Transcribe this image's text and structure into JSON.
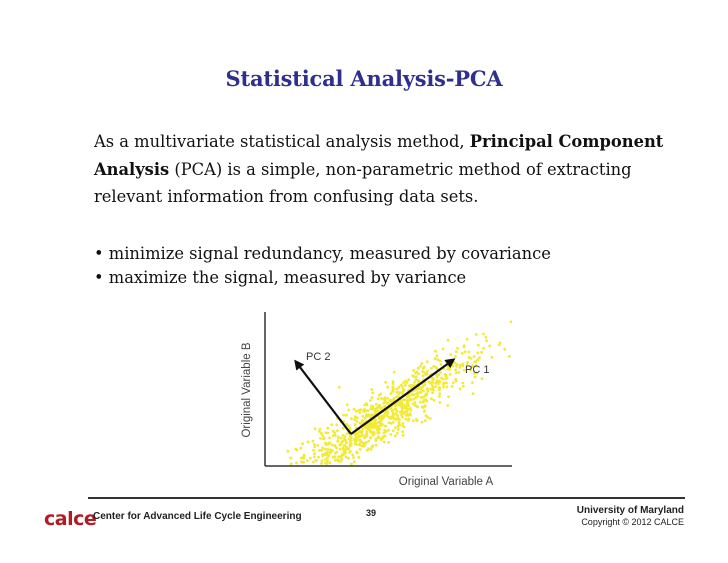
{
  "slide": {
    "title": "Statistical Analysis-PCA",
    "paragraph": {
      "part1": "As a multivariate statistical analysis method, ",
      "bold1": "Principal Component Analysis",
      "part2": " (PCA) is a simple, non-parametric method of extracting relevant information from confusing data sets."
    },
    "bullets": [
      "• minimize signal redundancy, measured by covariance",
      "• maximize the signal, measured by variance"
    ]
  },
  "figure": {
    "y_axis_label": "Original Variable B",
    "x_axis_label": "Original Variable A",
    "pc1_label": "PC 1",
    "pc2_label": "PC 2",
    "point_color": "#f2ea34",
    "arrow_color": "#111111"
  },
  "footer": {
    "logo": "calce",
    "center_name": "Center for Advanced Life Cycle Engineering",
    "page_number": "39",
    "university": "University of Maryland",
    "copyright": "Copyright © 2012 CALCE",
    "logo_color": "#b01c24"
  }
}
